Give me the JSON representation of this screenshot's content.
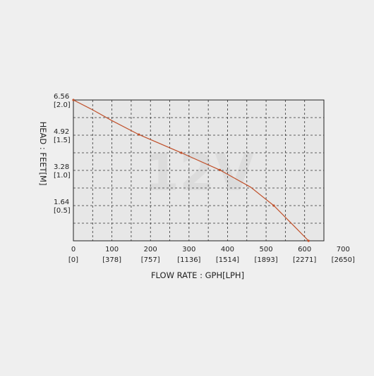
{
  "chart_data": {
    "type": "line",
    "watermark": "12V",
    "xlabel": "FLOW RATE : GPH[LPH]",
    "ylabel": "HEAD : FEET[M]",
    "xlim": [
      0,
      650
    ],
    "ylim": [
      0,
      6.56
    ],
    "x_ticks": [
      {
        "value": 0,
        "label": "0",
        "sublabel": "[0]"
      },
      {
        "value": 100,
        "label": "100",
        "sublabel": "[378]"
      },
      {
        "value": 200,
        "label": "200",
        "sublabel": "[757]"
      },
      {
        "value": 300,
        "label": "300",
        "sublabel": "[1136]"
      },
      {
        "value": 400,
        "label": "400",
        "sublabel": "[1514]"
      },
      {
        "value": 500,
        "label": "500",
        "sublabel": "[1893]"
      },
      {
        "value": 600,
        "label": "600",
        "sublabel": "[2271]"
      },
      {
        "value": 700,
        "label": "700",
        "sublabel": "[2650]"
      }
    ],
    "y_ticks": [
      {
        "value": 6.56,
        "label": "6.56",
        "sublabel": "[2.0]"
      },
      {
        "value": 4.92,
        "label": "4.92",
        "sublabel": "[1.5]"
      },
      {
        "value": 3.28,
        "label": "3.28",
        "sublabel": "[1.0]"
      },
      {
        "value": 1.64,
        "label": "1.64",
        "sublabel": "[0.5]"
      }
    ],
    "grid_x": [
      50,
      100,
      150,
      200,
      250,
      300,
      350,
      400,
      450,
      500,
      550,
      600
    ],
    "grid_y": [
      0.82,
      1.64,
      2.46,
      3.28,
      4.1,
      4.92,
      5.74
    ],
    "grid": true,
    "series": [
      {
        "color": "#c0502a",
        "x": [
          0,
          50,
          100,
          170,
          280,
          380,
          460,
          520,
          580,
          610
        ],
        "y": [
          6.56,
          6.1,
          5.6,
          4.95,
          4.1,
          3.3,
          2.5,
          1.64,
          0.55,
          0.0
        ],
        "markers_x": [
          0,
          170,
          280,
          380,
          520,
          610
        ],
        "markers_y": [
          6.56,
          4.95,
          4.1,
          3.3,
          1.64,
          0.0
        ]
      }
    ]
  }
}
